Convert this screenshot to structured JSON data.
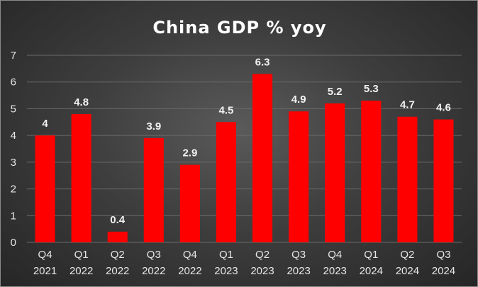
{
  "chart_data": {
    "type": "bar",
    "title": "China GDP % yoy",
    "xlabel": "",
    "ylabel": "",
    "ylim": [
      0,
      7
    ],
    "yticks": [
      0,
      1,
      2,
      3,
      4,
      5,
      6,
      7
    ],
    "grid": true,
    "legend": "none",
    "categories": [
      [
        "Q4",
        "2021"
      ],
      [
        "Q1",
        "2022"
      ],
      [
        "Q2",
        "2022"
      ],
      [
        "Q3",
        "2022"
      ],
      [
        "Q4",
        "2022"
      ],
      [
        "Q1",
        "2023"
      ],
      [
        "Q2",
        "2023"
      ],
      [
        "Q3",
        "2023"
      ],
      [
        "Q4",
        "2023"
      ],
      [
        "Q1",
        "2024"
      ],
      [
        "Q2",
        "2024"
      ],
      [
        "Q3",
        "2024"
      ]
    ],
    "values": [
      4,
      4.8,
      0.4,
      3.9,
      2.9,
      4.5,
      6.3,
      4.9,
      5.2,
      5.3,
      4.7,
      4.6
    ],
    "data_labels": [
      "4",
      "4.8",
      "0.4",
      "3.9",
      "2.9",
      "4.5",
      "6.3",
      "4.9",
      "5.2",
      "5.3",
      "4.7",
      "4.6"
    ],
    "colors": {
      "bar": "#ff0000",
      "text": "#ffffff"
    }
  }
}
